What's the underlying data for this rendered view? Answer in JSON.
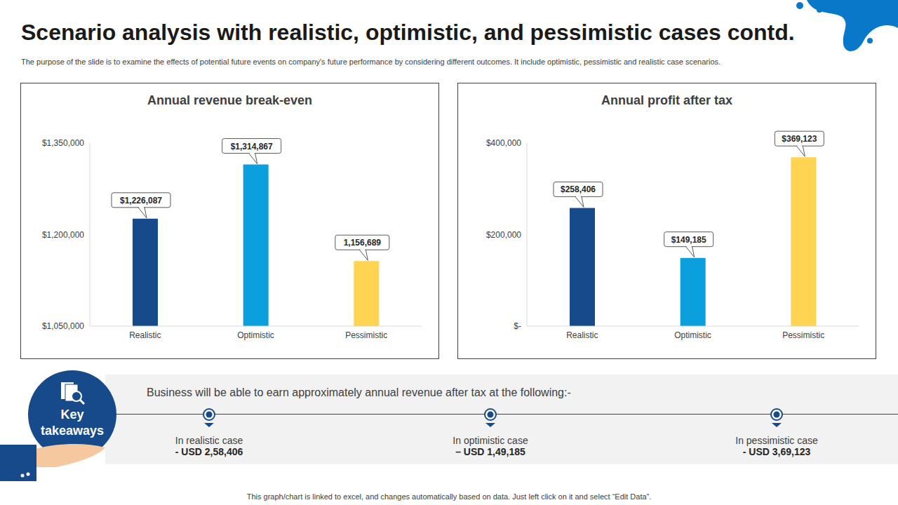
{
  "title": "Scenario analysis with realistic, optimistic, and pessimistic cases contd.",
  "subtitle": "The purpose of the slide is to examine the effects of potential future events on company's future performance by considering different outcomes. It include optimistic, pessimistic and realistic case scenarios.",
  "chart_data": [
    {
      "type": "bar",
      "title": "Annual revenue break-even",
      "categories": [
        "Realistic",
        "Optimistic",
        "Pessimistic"
      ],
      "values": [
        1226087,
        1314867,
        1156689
      ],
      "value_labels": [
        "$1,226,087",
        "$1,314,867",
        "1,156,689"
      ],
      "colors": [
        "#164a8a",
        "#0b9fdd",
        "#ffd452"
      ],
      "ylim": [
        1050000,
        1350000
      ],
      "yticks": [
        {
          "value": 1050000,
          "label": "$1,050,000"
        },
        {
          "value": 1200000,
          "label": "$1,200,000"
        },
        {
          "value": 1350000,
          "label": "$1,350,000"
        }
      ],
      "grid": false,
      "data_labels": true
    },
    {
      "type": "bar",
      "title": "Annual profit after tax",
      "categories": [
        "Realistic",
        "Optimistic",
        "Pessimistic"
      ],
      "values": [
        258406,
        149185,
        369123
      ],
      "value_labels": [
        "$258,406",
        "$149,185",
        "$369,123"
      ],
      "colors": [
        "#164a8a",
        "#0b9fdd",
        "#ffd452"
      ],
      "ylim": [
        0,
        400000
      ],
      "yticks": [
        {
          "value": 0,
          "label": "$-"
        },
        {
          "value": 200000,
          "label": "$200,000"
        },
        {
          "value": 400000,
          "label": "$400,000"
        }
      ],
      "grid": false,
      "data_labels": true
    }
  ],
  "key_takeaways": {
    "badge": "Key takeaways",
    "heading": "Business will be able to earn approximately annual revenue after tax at the following:-",
    "items": [
      {
        "label": "In realistic case",
        "value": "- USD 2,58,406"
      },
      {
        "label": "In optimistic case",
        "value": "– USD 1,49,185"
      },
      {
        "label": "In pessimistic case",
        "value": "- USD 3,69,123"
      }
    ]
  },
  "footer": "This graph/chart is linked to excel,  and changes automatically based on data. Just left click on it and select “Edit Data”."
}
